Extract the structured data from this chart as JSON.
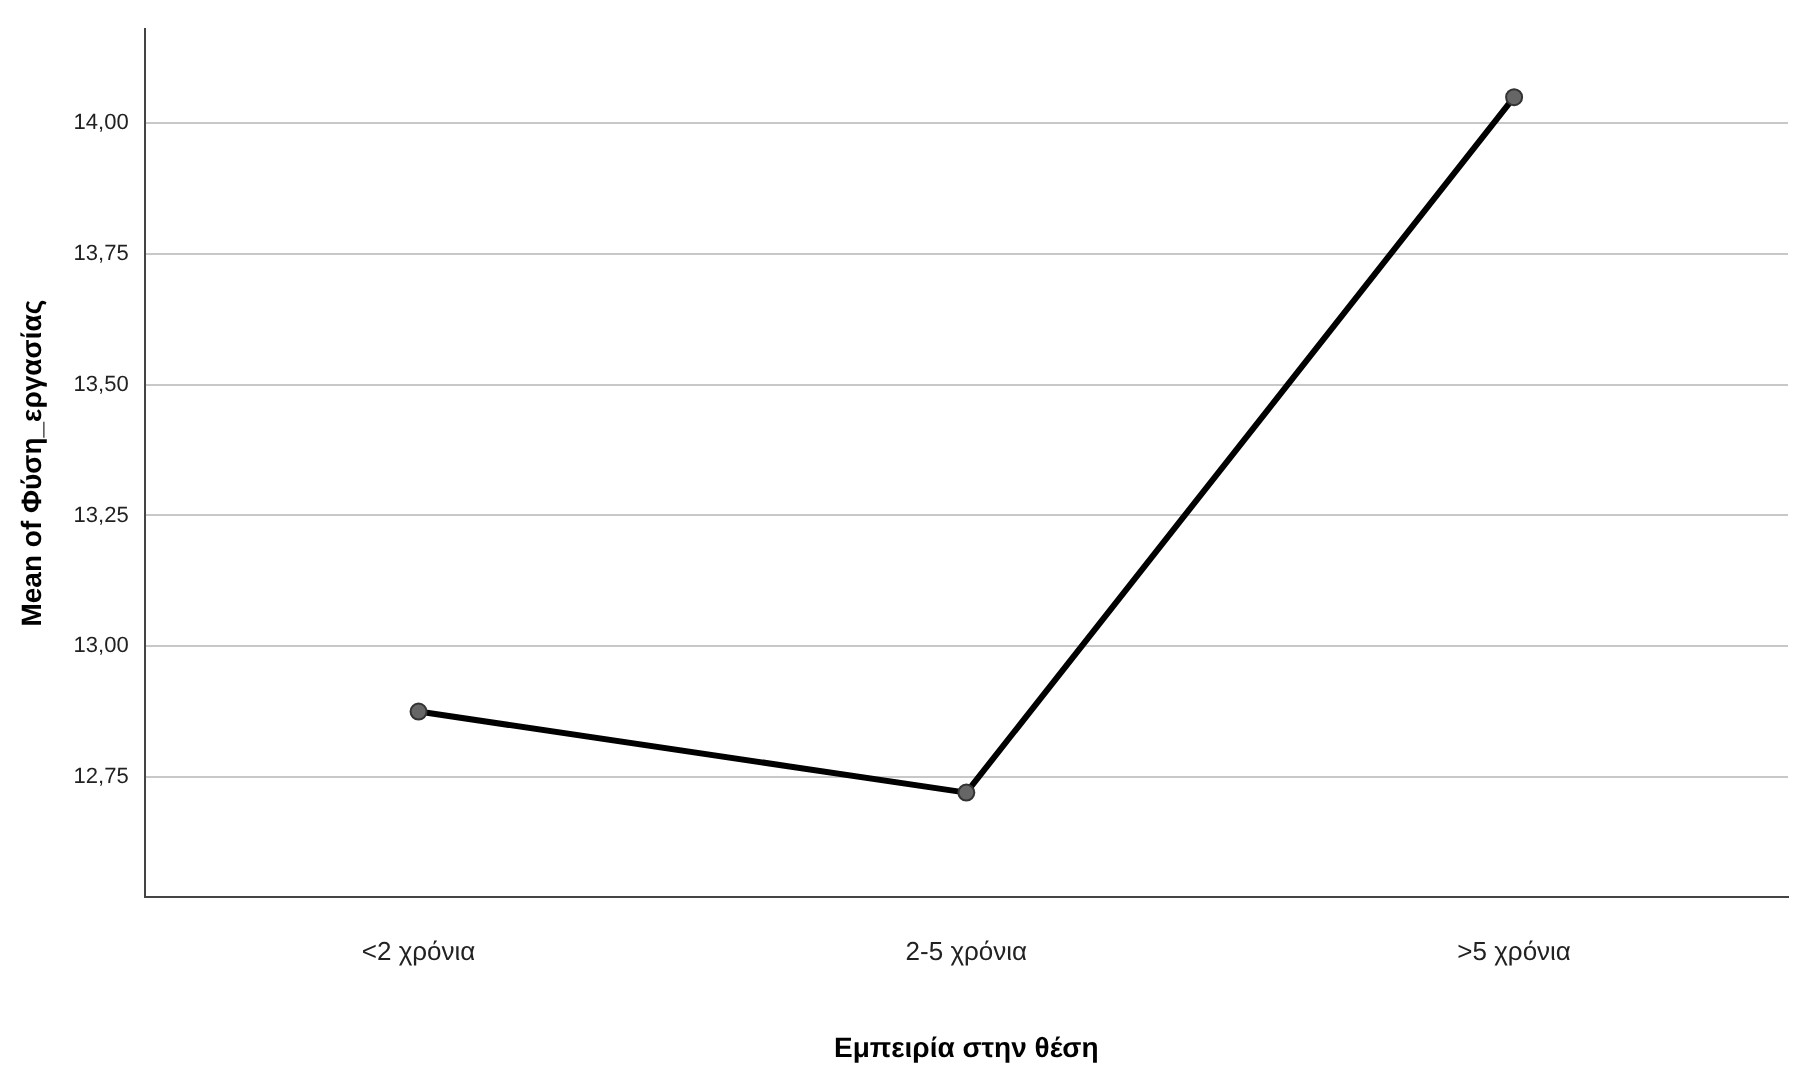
{
  "chart_data": {
    "type": "line",
    "xlabel": "Εμπειρία στην θέση",
    "ylabel": "Mean of Φύση_εργασίας",
    "categories": [
      "<2 χρόνια",
      "2-5 χρόνια",
      ">5 χρόνια"
    ],
    "series": [
      {
        "color": "#000000",
        "values": [
          12.875,
          12.72,
          14.05
        ]
      }
    ],
    "ylim": [
      12.52,
      14.18
    ],
    "yticks": [
      {
        "value": 12.75,
        "label": "12,75"
      },
      {
        "value": 13,
        "label": "13,00"
      },
      {
        "value": 13.25,
        "label": "13,25"
      },
      {
        "value": 13.5,
        "label": "13,50"
      },
      {
        "value": 13.75,
        "label": "13,75"
      },
      {
        "value": 14,
        "label": "14,00"
      }
    ],
    "grid": "y",
    "marker": "circle",
    "line_style": "solid",
    "legend": false
  }
}
